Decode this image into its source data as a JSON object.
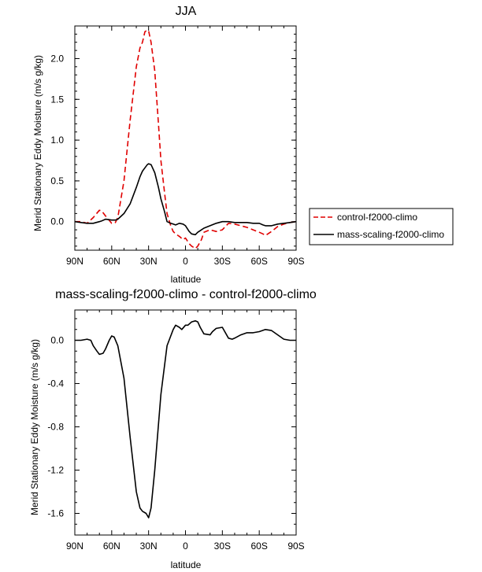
{
  "chart_data": [
    {
      "type": "line",
      "title": "JJA",
      "xlabel": "latitude",
      "ylabel": "Merid Stationary Eddy Moisture (m/s g/kg)",
      "x": [
        90,
        85,
        80,
        75,
        70,
        68,
        65,
        60,
        57,
        55,
        50,
        45,
        40,
        37,
        35,
        33,
        31,
        30,
        28,
        25,
        22,
        20,
        17,
        15,
        12,
        10,
        8,
        5,
        2,
        0,
        -3,
        -5,
        -8,
        -10,
        -13,
        -15,
        -20,
        -25,
        -30,
        -35,
        -40,
        -45,
        -50,
        -55,
        -60,
        -63,
        -65,
        -70,
        -75,
        -80,
        -85,
        -90
      ],
      "xlim": [
        90,
        -90
      ],
      "xticks": [
        "90N",
        "60N",
        "30N",
        "0",
        "30S",
        "60S",
        "90S"
      ],
      "xtick_values": [
        90,
        60,
        30,
        0,
        -30,
        -60,
        -90
      ],
      "ylim": [
        -0.35,
        2.4
      ],
      "yticks": [
        "0.0",
        "0.5",
        "1.0",
        "1.5",
        "2.0"
      ],
      "ytick_values": [
        0.0,
        0.5,
        1.0,
        1.5,
        2.0
      ],
      "series": [
        {
          "name": "control-f2000-climo",
          "style": "dashed",
          "color": "#e00000",
          "values": [
            0.0,
            0.0,
            -0.02,
            0.05,
            0.14,
            0.13,
            0.07,
            -0.02,
            -0.01,
            0.05,
            0.5,
            1.25,
            1.9,
            2.13,
            2.2,
            2.33,
            2.35,
            2.34,
            2.2,
            1.85,
            1.2,
            0.75,
            0.35,
            0.1,
            -0.05,
            -0.12,
            -0.15,
            -0.18,
            -0.22,
            -0.2,
            -0.27,
            -0.3,
            -0.33,
            -0.3,
            -0.22,
            -0.13,
            -0.1,
            -0.12,
            -0.1,
            -0.02,
            -0.03,
            -0.05,
            -0.07,
            -0.1,
            -0.13,
            -0.15,
            -0.17,
            -0.12,
            -0.06,
            -0.03,
            -0.01,
            0.0
          ]
        },
        {
          "name": "mass-scaling-f2000-climo",
          "style": "solid",
          "color": "#000000",
          "values": [
            0.0,
            -0.01,
            -0.02,
            -0.02,
            0.0,
            0.01,
            0.03,
            0.02,
            0.02,
            0.03,
            0.1,
            0.22,
            0.42,
            0.55,
            0.62,
            0.66,
            0.7,
            0.71,
            0.7,
            0.6,
            0.42,
            0.28,
            0.12,
            0.0,
            -0.02,
            -0.03,
            -0.04,
            -0.02,
            -0.03,
            -0.05,
            -0.12,
            -0.15,
            -0.16,
            -0.13,
            -0.1,
            -0.08,
            -0.05,
            -0.02,
            0.0,
            0.0,
            -0.01,
            -0.01,
            -0.01,
            -0.02,
            -0.02,
            -0.04,
            -0.05,
            -0.05,
            -0.03,
            -0.02,
            -0.01,
            0.0
          ]
        }
      ],
      "legend": "right"
    },
    {
      "type": "line",
      "title": "mass-scaling-f2000-climo - control-f2000-climo",
      "xlabel": "latitude",
      "ylabel": "Merid Stationary Eddy Moisture (m/s g/kg)",
      "x": [
        90,
        85,
        80,
        77,
        75,
        72,
        70,
        67,
        65,
        62,
        60,
        58,
        55,
        50,
        45,
        40,
        37,
        35,
        32,
        30,
        28,
        25,
        20,
        15,
        10,
        8,
        5,
        3,
        0,
        -2,
        -5,
        -8,
        -10,
        -12,
        -15,
        -20,
        -22,
        -25,
        -30,
        -35,
        -38,
        -40,
        -45,
        -50,
        -55,
        -60,
        -65,
        -70,
        -75,
        -80,
        -85,
        -90
      ],
      "xlim": [
        90,
        -90
      ],
      "xticks": [
        "90N",
        "60N",
        "30N",
        "0",
        "30S",
        "60S",
        "90S"
      ],
      "xtick_values": [
        90,
        60,
        30,
        0,
        -30,
        -60,
        -90
      ],
      "ylim": [
        -1.8,
        0.28
      ],
      "yticks": [
        "0.0",
        "-0.4",
        "-0.8",
        "-1.2",
        "-1.6"
      ],
      "ytick_values": [
        0.0,
        -0.4,
        -0.8,
        -1.2,
        -1.6
      ],
      "series": [
        {
          "name": "",
          "style": "solid",
          "color": "#000000",
          "values": [
            0.0,
            0.0,
            0.01,
            0.0,
            -0.05,
            -0.1,
            -0.13,
            -0.12,
            -0.08,
            0.0,
            0.04,
            0.03,
            -0.05,
            -0.35,
            -0.9,
            -1.4,
            -1.55,
            -1.58,
            -1.6,
            -1.64,
            -1.55,
            -1.2,
            -0.5,
            -0.05,
            0.1,
            0.14,
            0.12,
            0.1,
            0.14,
            0.14,
            0.17,
            0.18,
            0.17,
            0.12,
            0.06,
            0.05,
            0.08,
            0.11,
            0.12,
            0.02,
            0.01,
            0.02,
            0.05,
            0.07,
            0.07,
            0.08,
            0.1,
            0.09,
            0.05,
            0.01,
            0.0,
            0.0
          ]
        }
      ]
    }
  ]
}
